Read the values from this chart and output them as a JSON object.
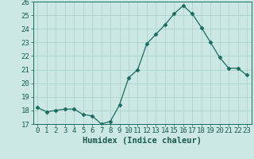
{
  "x": [
    0,
    1,
    2,
    3,
    4,
    5,
    6,
    7,
    8,
    9,
    10,
    11,
    12,
    13,
    14,
    15,
    16,
    17,
    18,
    19,
    20,
    21,
    22,
    23
  ],
  "y": [
    18.2,
    17.9,
    18.0,
    18.1,
    18.1,
    17.7,
    17.6,
    17.0,
    17.2,
    18.4,
    20.4,
    21.0,
    22.9,
    23.6,
    24.3,
    25.1,
    25.7,
    25.1,
    24.1,
    23.0,
    21.9,
    21.1,
    21.1,
    20.6
  ],
  "xlim": [
    -0.5,
    23.5
  ],
  "ylim": [
    17,
    26
  ],
  "yticks": [
    17,
    18,
    19,
    20,
    21,
    22,
    23,
    24,
    25,
    26
  ],
  "xticks": [
    0,
    1,
    2,
    3,
    4,
    5,
    6,
    7,
    8,
    9,
    10,
    11,
    12,
    13,
    14,
    15,
    16,
    17,
    18,
    19,
    20,
    21,
    22,
    23
  ],
  "xlabel": "Humidex (Indice chaleur)",
  "line_color": "#1a6b5e",
  "marker": "D",
  "marker_size": 2.5,
  "bg_color": "#cce8e4",
  "grid_color": "#aed4ce",
  "font_color": "#1a5a50",
  "tick_fontsize": 6.5,
  "xlabel_fontsize": 7.5
}
